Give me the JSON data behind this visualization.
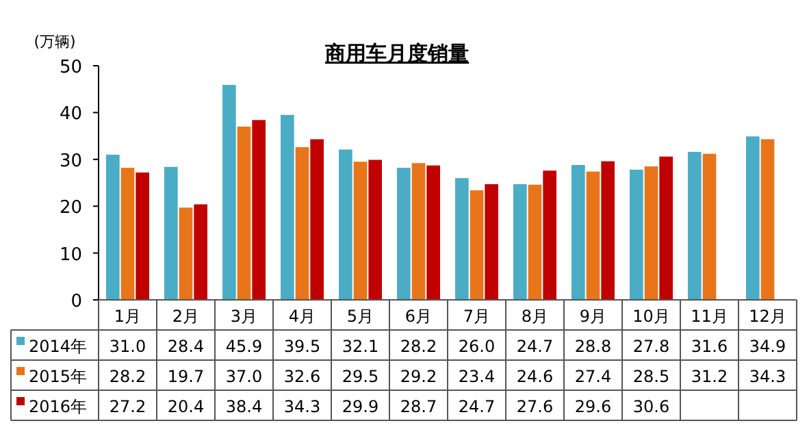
{
  "chart_data": {
    "type": "bar",
    "title": "商用车月度销量",
    "ylabel": "(万辆)",
    "categories": [
      "1月",
      "2月",
      "3月",
      "4月",
      "5月",
      "6月",
      "7月",
      "8月",
      "9月",
      "10月",
      "11月",
      "12月"
    ],
    "ylim": [
      0,
      50
    ],
    "yticks": [
      0,
      10,
      20,
      30,
      40,
      50
    ],
    "grid": false,
    "legend": "bottom",
    "series": [
      {
        "name": "2014年",
        "color": "#4bacc6",
        "values": [
          31.0,
          28.4,
          45.9,
          39.5,
          32.1,
          28.2,
          26.0,
          24.7,
          28.8,
          27.8,
          31.6,
          34.9
        ],
        "value_labels": [
          "31.0",
          "28.4",
          "45.9",
          "39.5",
          "32.1",
          "28.2",
          "26.0",
          "24.7",
          "28.8",
          "27.8",
          "31.6",
          "34.9"
        ]
      },
      {
        "name": "2015年",
        "color": "#e8751a",
        "values": [
          28.2,
          19.7,
          37.0,
          32.6,
          29.5,
          29.2,
          23.4,
          24.6,
          27.4,
          28.5,
          31.2,
          34.3
        ],
        "value_labels": [
          "28.2",
          "19.7",
          "37.0",
          "32.6",
          "29.5",
          "29.2",
          "23.4",
          "24.6",
          "27.4",
          "28.5",
          "31.2",
          "34.3"
        ]
      },
      {
        "name": "2016年",
        "color": "#c00000",
        "values": [
          27.2,
          20.4,
          38.4,
          34.3,
          29.9,
          28.7,
          24.7,
          27.6,
          29.6,
          30.6,
          null,
          null
        ],
        "value_labels": [
          "27.2",
          "20.4",
          "38.4",
          "34.3",
          "29.9",
          "28.7",
          "24.7",
          "27.6",
          "29.6",
          "30.6",
          null,
          null
        ]
      }
    ]
  }
}
